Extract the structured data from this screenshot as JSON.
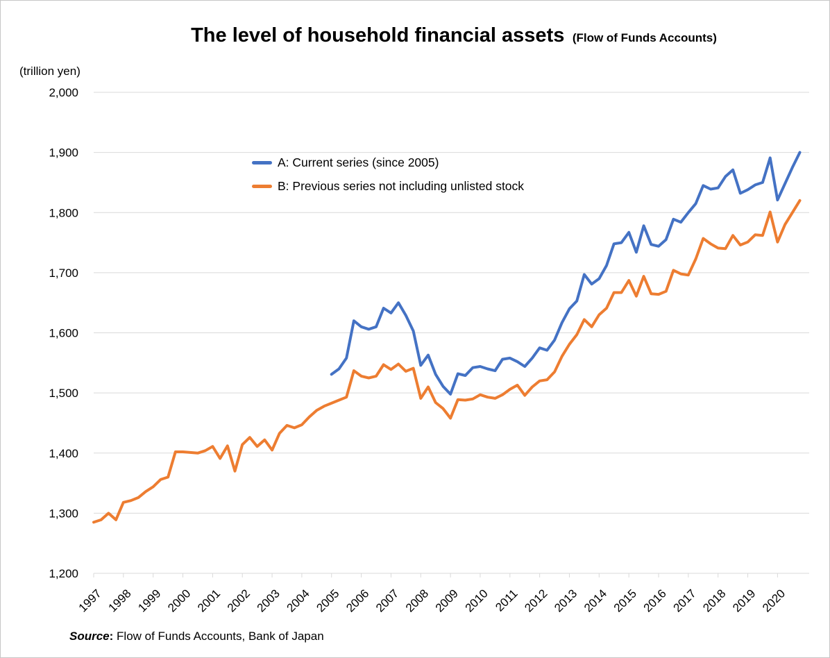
{
  "title": {
    "main": "The level of household financial assets",
    "annotation": "(Flow of Funds Accounts)"
  },
  "axis_unit_label": "(trillion yen)",
  "source_note": {
    "label": "Source",
    "colon": ":",
    "text": " Flow of Funds Accounts, Bank of Japan"
  },
  "colors": {
    "series_a_blue": "#4472C4",
    "series_b_orange": "#ED7D31",
    "gridline": "#D9D9D9",
    "text": "#000000",
    "page_border": "#C6C6C6"
  },
  "chart_data": {
    "type": "line",
    "frequency": "quarterly",
    "x_range": "1997Q1-2020Q4",
    "ylim": [
      1200,
      2000
    ],
    "grid": true,
    "legend_position": "inside-top-left",
    "x_tick_labels": [
      "1997",
      "1998",
      "1999",
      "2000",
      "2001",
      "2002",
      "2003",
      "2004",
      "2005",
      "2006",
      "2007",
      "2008",
      "2009",
      "2010",
      "2011",
      "2012",
      "2013",
      "2014",
      "2015",
      "2016",
      "2017",
      "2018",
      "2019",
      "2020"
    ],
    "y_ticks": [
      {
        "value": 1200,
        "label": "1,200"
      },
      {
        "value": 1300,
        "label": "1,300"
      },
      {
        "value": 1400,
        "label": "1,400"
      },
      {
        "value": 1500,
        "label": "1,500"
      },
      {
        "value": 1600,
        "label": "1,600"
      },
      {
        "value": 1700,
        "label": "1,700"
      },
      {
        "value": 1800,
        "label": "1,800"
      },
      {
        "value": 1900,
        "label": "1,900"
      },
      {
        "value": 2000,
        "label": "2,000"
      }
    ],
    "series": [
      {
        "name": "A: Current series (since 2005)",
        "color": "#4472C4",
        "start": "2005Q1",
        "start_quarter_index": 32,
        "values": [
          1531,
          1540,
          1558,
          1620,
          1610,
          1606,
          1610,
          1641,
          1633,
          1650,
          1629,
          1603,
          1546,
          1563,
          1531,
          1511,
          1498,
          1532,
          1529,
          1542,
          1544,
          1540,
          1537,
          1556,
          1558,
          1552,
          1544,
          1558,
          1575,
          1571,
          1588,
          1617,
          1640,
          1653,
          1697,
          1681,
          1690,
          1712,
          1748,
          1750,
          1767,
          1734,
          1778,
          1747,
          1744,
          1755,
          1789,
          1784,
          1800,
          1815,
          1845,
          1839,
          1841,
          1860,
          1871,
          1832,
          1838,
          1846,
          1850,
          1891,
          1821,
          1848,
          1875,
          1900
        ]
      },
      {
        "name": "B: Previous series not including unlisted stock",
        "color": "#ED7D31",
        "start": "1997Q1",
        "start_quarter_index": 0,
        "values": [
          1285,
          1289,
          1300,
          1289,
          1318,
          1321,
          1326,
          1336,
          1344,
          1356,
          1360,
          1402,
          1402,
          1401,
          1400,
          1404,
          1411,
          1391,
          1412,
          1370,
          1414,
          1426,
          1411,
          1422,
          1405,
          1433,
          1446,
          1442,
          1447,
          1460,
          1471,
          1478,
          1483,
          1488,
          1493,
          1537,
          1528,
          1525,
          1528,
          1547,
          1539,
          1548,
          1536,
          1541,
          1491,
          1510,
          1484,
          1474,
          1458,
          1489,
          1488,
          1490,
          1497,
          1493,
          1491,
          1497,
          1506,
          1513,
          1496,
          1510,
          1520,
          1522,
          1535,
          1561,
          1581,
          1597,
          1622,
          1610,
          1630,
          1641,
          1667,
          1667,
          1687,
          1661,
          1694,
          1665,
          1664,
          1669,
          1704,
          1698,
          1696,
          1723,
          1757,
          1748,
          1741,
          1740,
          1762,
          1746,
          1751,
          1763,
          1762,
          1801,
          1751,
          1780,
          1800,
          1820
        ]
      }
    ]
  }
}
